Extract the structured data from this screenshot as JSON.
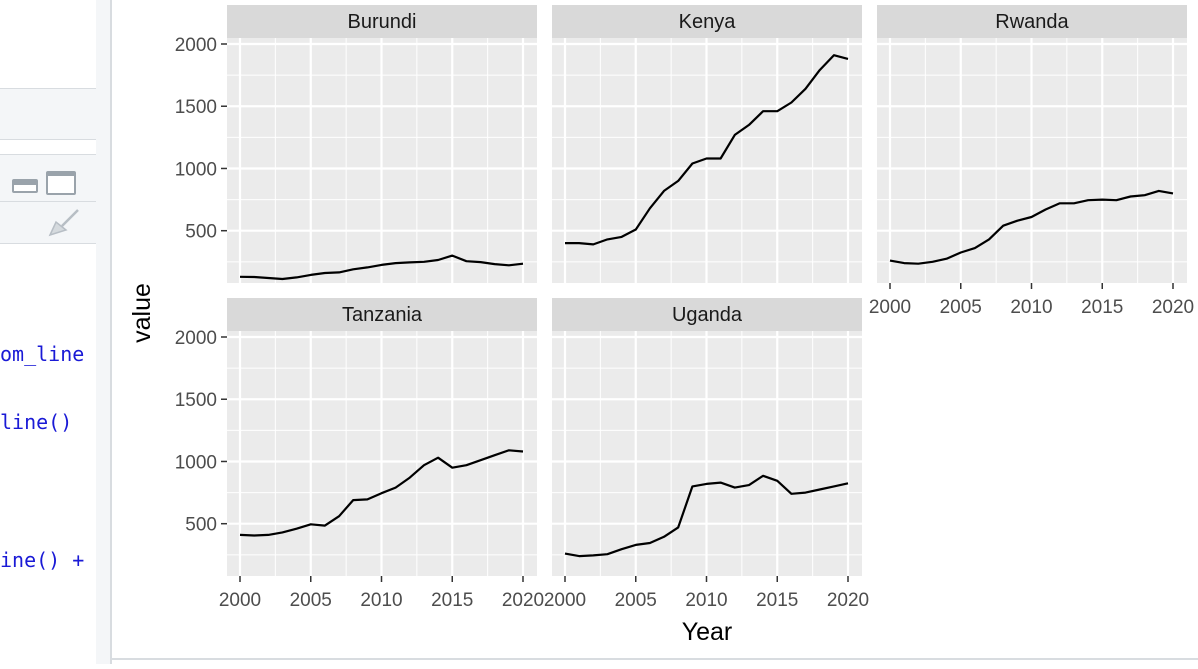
{
  "editor": {
    "code_lines": [
      {
        "text": "om_line",
        "top": 342
      },
      {
        "text": "line()",
        "top": 410
      },
      {
        "text": "ine() +",
        "top": 548
      }
    ]
  },
  "chart_data": {
    "type": "line",
    "facets": [
      "Burundi",
      "Kenya",
      "Rwanda",
      "Tanzania",
      "Uganda"
    ],
    "xlabel": "Year",
    "ylabel": "value",
    "xlim": [
      2000,
      2020
    ],
    "ylim": [
      120,
      2000
    ],
    "x_ticks": [
      2000,
      2005,
      2010,
      2015,
      2020
    ],
    "y_ticks": [
      500,
      1000,
      1500,
      2000
    ],
    "grid": true,
    "x": [
      2000,
      2001,
      2002,
      2003,
      2004,
      2005,
      2006,
      2007,
      2008,
      2009,
      2010,
      2011,
      2012,
      2013,
      2014,
      2015,
      2016,
      2017,
      2018,
      2019,
      2020
    ],
    "series": [
      {
        "name": "Burundi",
        "values": [
          130,
          128,
          120,
          112,
          125,
          145,
          160,
          165,
          190,
          205,
          225,
          240,
          245,
          250,
          265,
          300,
          255,
          248,
          232,
          222,
          235
        ]
      },
      {
        "name": "Kenya",
        "values": [
          400,
          400,
          390,
          430,
          450,
          510,
          680,
          820,
          900,
          1040,
          1080,
          1080,
          1270,
          1350,
          1460,
          1460,
          1530,
          1640,
          1790,
          1910,
          1880
        ]
      },
      {
        "name": "Rwanda",
        "values": [
          260,
          240,
          235,
          250,
          275,
          325,
          360,
          430,
          540,
          580,
          610,
          670,
          720,
          720,
          745,
          750,
          745,
          775,
          785,
          820,
          800
        ]
      },
      {
        "name": "Tanzania",
        "values": [
          410,
          405,
          410,
          430,
          460,
          495,
          485,
          560,
          690,
          695,
          745,
          790,
          870,
          970,
          1030,
          950,
          970,
          1010,
          1050,
          1090,
          1080
        ]
      },
      {
        "name": "Uganda",
        "values": [
          260,
          240,
          245,
          255,
          295,
          330,
          345,
          395,
          470,
          800,
          820,
          830,
          790,
          810,
          885,
          845,
          740,
          750,
          775,
          800,
          825
        ]
      }
    ]
  }
}
